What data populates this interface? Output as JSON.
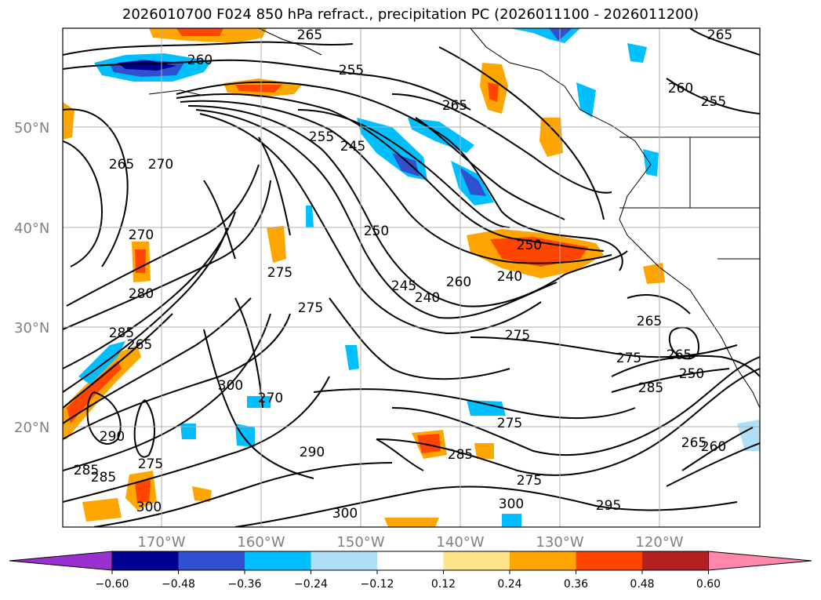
{
  "title": "2026010700 F024 850 hPa refract., precipitation PC (2026011100 - 2026011200)",
  "lat_labels": [
    "50°N",
    "40°N",
    "30°N",
    "20°N"
  ],
  "lon_labels": [
    "170°W",
    "160°W",
    "150°W",
    "140°W",
    "130°W",
    "120°W"
  ],
  "colorbar": {
    "ticks": [
      "−0.60",
      "−0.48",
      "−0.36",
      "−0.24",
      "−0.12",
      "0.12",
      "0.24",
      "0.36",
      "0.48",
      "0.60"
    ],
    "colors": [
      "#9b30d0",
      "#000090",
      "#3050d0",
      "#00bfff",
      "#b0e0f8",
      "#ffffff",
      "#ffe58a",
      "#ffa500",
      "#ff4500",
      "#b22222",
      "#ff88aa"
    ]
  },
  "contour_labels": [
    "265",
    "260",
    "255",
    "265",
    "265",
    "260",
    "255",
    "270",
    "265",
    "255",
    "245",
    "270",
    "250",
    "250",
    "240",
    "275",
    "275",
    "275",
    "260",
    "240",
    "245",
    "280",
    "285",
    "265",
    "265",
    "300",
    "275",
    "270",
    "265",
    "250",
    "285",
    "285",
    "275",
    "300",
    "295",
    "290",
    "275",
    "285",
    "290",
    "285",
    "300",
    "300",
    "275",
    "265",
    "260"
  ],
  "colors": {
    "contour": "#000000",
    "grid": "#b0b0b0",
    "coast": "#000000"
  }
}
